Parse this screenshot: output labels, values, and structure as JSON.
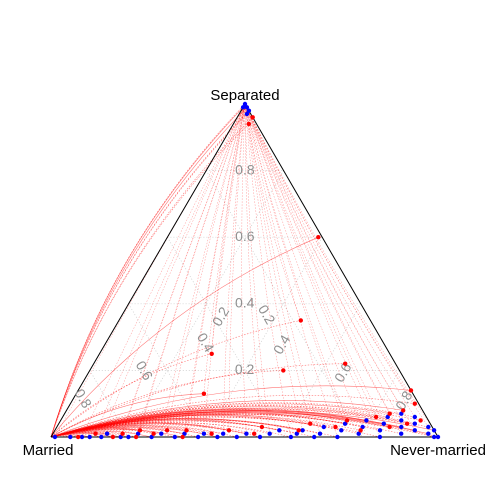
{
  "chart_data": {
    "type": "scatter",
    "subtype": "ternary",
    "vertices": {
      "top": "Separated",
      "left": "Married",
      "right": "Never-married"
    },
    "ticks": [
      "0.2",
      "0.4",
      "0.6",
      "0.8"
    ],
    "grid": "dotted",
    "series_colors": {
      "blue": "#0000ff",
      "red": "#ff0000",
      "arcs": "#ff0000",
      "frame": "#000000"
    },
    "series": [
      {
        "color": "blue",
        "points": [
          [
            0.0,
            0.99,
            0.01
          ],
          [
            0.0,
            0.95,
            0.05
          ],
          [
            0.0,
            0.92,
            0.08
          ],
          [
            0.0,
            0.9,
            0.1
          ],
          [
            0.0,
            0.87,
            0.13
          ],
          [
            0.01,
            0.85,
            0.14
          ],
          [
            0.0,
            0.82,
            0.18
          ],
          [
            0.0,
            0.8,
            0.2
          ],
          [
            0.01,
            0.77,
            0.22
          ],
          [
            0.0,
            0.74,
            0.26
          ],
          [
            0.01,
            0.71,
            0.28
          ],
          [
            0.0,
            0.68,
            0.32
          ],
          [
            0.01,
            0.65,
            0.34
          ],
          [
            0.0,
            0.62,
            0.38
          ],
          [
            0.01,
            0.6,
            0.39
          ],
          [
            0.0,
            0.57,
            0.43
          ],
          [
            0.01,
            0.55,
            0.44
          ],
          [
            0.0,
            0.52,
            0.48
          ],
          [
            0.01,
            0.49,
            0.5
          ],
          [
            0.0,
            0.46,
            0.54
          ],
          [
            0.01,
            0.43,
            0.56
          ],
          [
            0.02,
            0.4,
            0.58
          ],
          [
            0.0,
            0.38,
            0.62
          ],
          [
            0.01,
            0.36,
            0.63
          ],
          [
            0.02,
            0.34,
            0.64
          ],
          [
            0.0,
            0.32,
            0.68
          ],
          [
            0.01,
            0.3,
            0.69
          ],
          [
            0.03,
            0.28,
            0.69
          ],
          [
            0.0,
            0.26,
            0.74
          ],
          [
            0.02,
            0.24,
            0.74
          ],
          [
            0.04,
            0.22,
            0.74
          ],
          [
            0.01,
            0.2,
            0.79
          ],
          [
            0.03,
            0.18,
            0.79
          ],
          [
            0.05,
            0.16,
            0.79
          ],
          [
            0.0,
            0.15,
            0.85
          ],
          [
            0.02,
            0.14,
            0.84
          ],
          [
            0.04,
            0.12,
            0.84
          ],
          [
            0.06,
            0.1,
            0.84
          ],
          [
            0.01,
            0.09,
            0.9
          ],
          [
            0.03,
            0.08,
            0.89
          ],
          [
            0.05,
            0.07,
            0.88
          ],
          [
            0.07,
            0.06,
            0.87
          ],
          [
            0.02,
            0.05,
            0.93
          ],
          [
            0.04,
            0.04,
            0.92
          ],
          [
            0.06,
            0.03,
            0.91
          ],
          [
            0.01,
            0.02,
            0.97
          ],
          [
            0.03,
            0.01,
            0.96
          ],
          [
            0.0,
            0.01,
            0.99
          ],
          [
            0.02,
            0.0,
            0.98
          ],
          [
            0.0,
            0.0,
            1.0
          ],
          [
            1.0,
            0.0,
            0.0
          ],
          [
            0.99,
            0.01,
            0.0
          ],
          [
            0.98,
            0.0,
            0.02
          ],
          [
            0.97,
            0.01,
            0.02
          ],
          [
            0.99,
            0.0,
            0.01
          ]
        ]
      },
      {
        "color": "red",
        "points": [
          [
            0.0,
            0.93,
            0.07
          ],
          [
            0.01,
            0.88,
            0.11
          ],
          [
            0.0,
            0.84,
            0.16
          ],
          [
            0.01,
            0.81,
            0.18
          ],
          [
            0.0,
            0.78,
            0.22
          ],
          [
            0.02,
            0.76,
            0.22
          ],
          [
            0.01,
            0.73,
            0.26
          ],
          [
            0.02,
            0.69,
            0.29
          ],
          [
            0.0,
            0.66,
            0.34
          ],
          [
            0.02,
            0.64,
            0.34
          ],
          [
            0.01,
            0.58,
            0.41
          ],
          [
            0.02,
            0.53,
            0.45
          ],
          [
            0.01,
            0.47,
            0.52
          ],
          [
            0.03,
            0.44,
            0.53
          ],
          [
            0.02,
            0.35,
            0.63
          ],
          [
            0.04,
            0.31,
            0.65
          ],
          [
            0.03,
            0.25,
            0.72
          ],
          [
            0.05,
            0.21,
            0.74
          ],
          [
            0.02,
            0.19,
            0.79
          ],
          [
            0.06,
            0.13,
            0.81
          ],
          [
            0.03,
            0.11,
            0.86
          ],
          [
            0.07,
            0.09,
            0.84
          ],
          [
            0.04,
            0.06,
            0.9
          ],
          [
            0.08,
            0.05,
            0.87
          ],
          [
            0.05,
            0.02,
            0.93
          ],
          [
            0.1,
            0.01,
            0.89
          ],
          [
            0.14,
            0.0,
            0.86
          ],
          [
            0.25,
            0.46,
            0.29
          ],
          [
            0.2,
            0.3,
            0.5
          ],
          [
            0.13,
            0.54,
            0.33
          ],
          [
            0.22,
            0.13,
            0.65
          ],
          [
            0.35,
            0.18,
            0.47
          ],
          [
            0.6,
            0.01,
            0.39
          ],
          [
            0.94,
            0.02,
            0.04
          ],
          [
            0.96,
            0.0,
            0.04
          ]
        ]
      }
    ]
  }
}
